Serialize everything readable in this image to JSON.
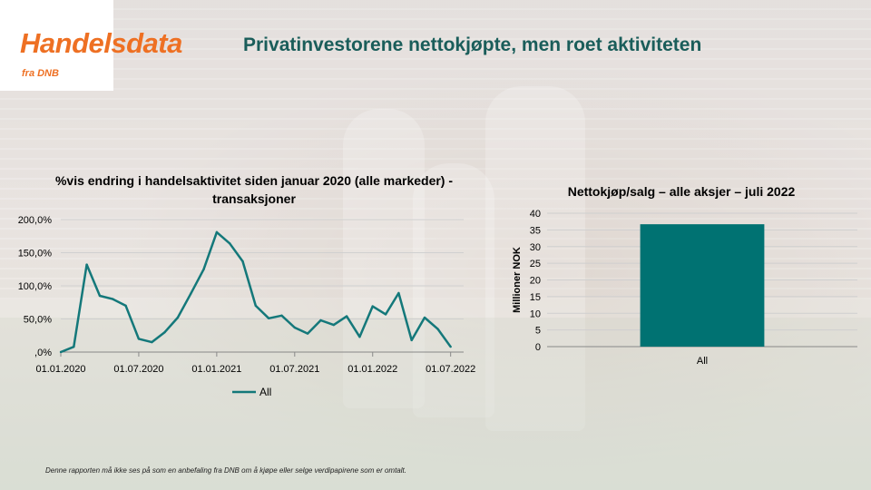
{
  "brand": {
    "title": "Handelsdata",
    "subtitle": "fra DNB"
  },
  "headline": "Privatinvestorene nettokjøpte, men roet aktiviteten",
  "disclaimer": "Denne rapporten må ikke ses på som en anbefaling fra DNB om å kjøpe eller selge verdipapirene som er omtalt.",
  "colors": {
    "brand_orange": "#ee7023",
    "headline": "#1a5d5a",
    "series": "#14787a",
    "bar": "#007272"
  },
  "chart_data": [
    {
      "type": "line",
      "title": "%vis endring i handelsaktivitet siden januar 2020 (alle markeder) - transaksjoner",
      "xlabel": "",
      "ylabel": "",
      "ylim": [
        0,
        200
      ],
      "y_ticks": [
        0,
        50,
        100,
        150,
        200
      ],
      "y_tick_labels": [
        ",0%",
        "50,0%",
        "100,0%",
        "150,0%",
        "200,0%"
      ],
      "x_tick_labels": [
        "01.01.2020",
        "01.07.2020",
        "01.01.2021",
        "01.07.2021",
        "01.01.2022",
        "01.07.2022"
      ],
      "legend": "bottom",
      "series": [
        {
          "name": "All",
          "x": [
            "2020-01",
            "2020-02",
            "2020-03",
            "2020-04",
            "2020-05",
            "2020-06",
            "2020-07",
            "2020-08",
            "2020-09",
            "2020-10",
            "2020-11",
            "2020-12",
            "2021-01",
            "2021-02",
            "2021-03",
            "2021-04",
            "2021-05",
            "2021-06",
            "2021-07",
            "2021-08",
            "2021-09",
            "2021-10",
            "2021-11",
            "2021-12",
            "2022-01",
            "2022-02",
            "2022-03",
            "2022-04",
            "2022-05",
            "2022-06",
            "2022-07",
            "2022-08"
          ],
          "values": [
            0,
            8,
            132,
            85,
            80,
            70,
            20,
            15,
            30,
            52,
            88,
            125,
            181,
            164,
            137,
            70,
            51,
            55,
            37,
            28,
            48,
            41,
            54,
            23,
            69,
            57,
            89,
            18,
            52,
            35,
            8,
            null
          ]
        }
      ]
    },
    {
      "type": "bar",
      "title": "Nettokjøp/salg – alle aksjer – juli 2022",
      "xlabel": "",
      "ylabel": "Millioner NOK",
      "ylim": [
        0,
        40
      ],
      "y_ticks": [
        0,
        5,
        10,
        15,
        20,
        25,
        30,
        35,
        40
      ],
      "categories": [
        "All"
      ],
      "values": [
        36.7
      ],
      "grid": true
    }
  ]
}
